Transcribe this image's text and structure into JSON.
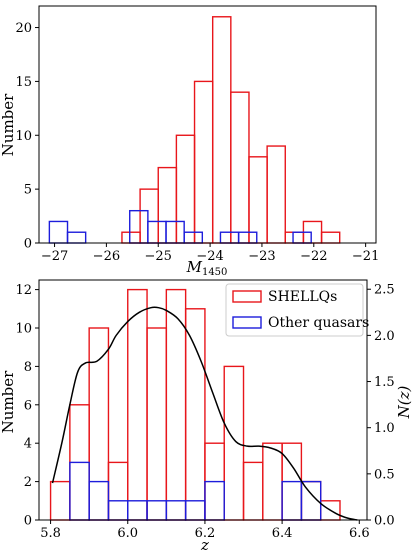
{
  "chart_data": [
    {
      "type": "histogram",
      "xlabel_main": "M",
      "xlabel_sub": "1450",
      "ylabel": "Number",
      "xlim": [
        -27.3,
        -20.8
      ],
      "ylim": [
        0,
        22
      ],
      "xticks": [
        -27,
        -26,
        -25,
        -24,
        -23,
        -22,
        -21
      ],
      "xtick_labels": [
        "−27",
        "−26",
        "−25",
        "−24",
        "−23",
        "−22",
        "−21"
      ],
      "yticks": [
        0,
        5,
        10,
        15,
        20
      ],
      "ytick_labels": [
        "0",
        "5",
        "10",
        "15",
        "20"
      ],
      "series": [
        {
          "name": "SHELLQs",
          "color": "#e8161b",
          "bins": [
            {
              "x0": -25.7,
              "x1": -25.35,
              "y": 1
            },
            {
              "x0": -25.35,
              "x1": -25.0,
              "y": 5
            },
            {
              "x0": -25.0,
              "x1": -24.65,
              "y": 7
            },
            {
              "x0": -24.65,
              "x1": -24.3,
              "y": 10
            },
            {
              "x0": -24.3,
              "x1": -23.95,
              "y": 15
            },
            {
              "x0": -23.95,
              "x1": -23.6,
              "y": 21
            },
            {
              "x0": -23.6,
              "x1": -23.25,
              "y": 14
            },
            {
              "x0": -23.25,
              "x1": -22.9,
              "y": 8
            },
            {
              "x0": -22.9,
              "x1": -22.55,
              "y": 9
            },
            {
              "x0": -22.55,
              "x1": -22.2,
              "y": 1
            },
            {
              "x0": -22.2,
              "x1": -21.85,
              "y": 2
            },
            {
              "x0": -21.85,
              "x1": -21.5,
              "y": 1
            }
          ]
        },
        {
          "name": "Other quasars",
          "color": "#1d1ddb",
          "bins": [
            {
              "x0": -27.1,
              "x1": -26.75,
              "y": 2
            },
            {
              "x0": -26.75,
              "x1": -26.4,
              "y": 1
            },
            {
              "x0": -25.55,
              "x1": -25.2,
              "y": 3
            },
            {
              "x0": -25.2,
              "x1": -24.85,
              "y": 2
            },
            {
              "x0": -24.85,
              "x1": -24.5,
              "y": 2
            },
            {
              "x0": -24.5,
              "x1": -24.15,
              "y": 1
            },
            {
              "x0": -23.8,
              "x1": -23.45,
              "y": 1
            },
            {
              "x0": -23.45,
              "x1": -23.1,
              "y": 1
            },
            {
              "x0": -22.4,
              "x1": -22.05,
              "y": 1
            }
          ]
        }
      ]
    },
    {
      "type": "histogram",
      "xlabel": "z",
      "ylabel": "Number",
      "ylabel_right": "N(z)",
      "xlim": [
        5.77,
        6.62
      ],
      "ylim": [
        0,
        12.5
      ],
      "ylim_right": [
        0,
        2.6
      ],
      "xticks": [
        5.8,
        6.0,
        6.2,
        6.4,
        6.6
      ],
      "xtick_labels": [
        "5.8",
        "6.0",
        "6.2",
        "6.4",
        "6.6"
      ],
      "yticks": [
        0,
        2,
        4,
        6,
        8,
        10,
        12
      ],
      "ytick_labels": [
        "0",
        "2",
        "4",
        "6",
        "8",
        "10",
        "12"
      ],
      "yticks_right": [
        0.0,
        0.5,
        1.0,
        1.5,
        2.0,
        2.5
      ],
      "ytick_labels_right": [
        "0.0",
        "0.5",
        "1.0",
        "1.5",
        "2.0",
        "2.5"
      ],
      "legend": {
        "location": "upper-right",
        "entries": [
          {
            "label": "SHELLQs",
            "color": "#e8161b"
          },
          {
            "label": "Other quasars",
            "color": "#1d1ddb"
          }
        ]
      },
      "series": [
        {
          "name": "SHELLQs",
          "color": "#e8161b",
          "bins": [
            {
              "x0": 5.8,
              "x1": 5.85,
              "y": 2
            },
            {
              "x0": 5.85,
              "x1": 5.9,
              "y": 6
            },
            {
              "x0": 5.9,
              "x1": 5.95,
              "y": 10
            },
            {
              "x0": 5.95,
              "x1": 6.0,
              "y": 3
            },
            {
              "x0": 6.0,
              "x1": 6.05,
              "y": 12
            },
            {
              "x0": 6.05,
              "x1": 6.1,
              "y": 10
            },
            {
              "x0": 6.1,
              "x1": 6.15,
              "y": 12
            },
            {
              "x0": 6.15,
              "x1": 6.2,
              "y": 11
            },
            {
              "x0": 6.2,
              "x1": 6.25,
              "y": 4
            },
            {
              "x0": 6.25,
              "x1": 6.3,
              "y": 8
            },
            {
              "x0": 6.3,
              "x1": 6.35,
              "y": 3
            },
            {
              "x0": 6.35,
              "x1": 6.4,
              "y": 4
            },
            {
              "x0": 6.4,
              "x1": 6.45,
              "y": 4
            },
            {
              "x0": 6.45,
              "x1": 6.5,
              "y": 2
            },
            {
              "x0": 6.5,
              "x1": 6.55,
              "y": 1
            }
          ]
        },
        {
          "name": "Other quasars",
          "color": "#1d1ddb",
          "bins": [
            {
              "x0": 5.85,
              "x1": 5.9,
              "y": 3
            },
            {
              "x0": 5.9,
              "x1": 5.95,
              "y": 2
            },
            {
              "x0": 5.95,
              "x1": 6.0,
              "y": 1
            },
            {
              "x0": 6.0,
              "x1": 6.05,
              "y": 1
            },
            {
              "x0": 6.05,
              "x1": 6.1,
              "y": 1
            },
            {
              "x0": 6.1,
              "x1": 6.15,
              "y": 1
            },
            {
              "x0": 6.15,
              "x1": 6.2,
              "y": 1
            },
            {
              "x0": 6.2,
              "x1": 6.25,
              "y": 2
            },
            {
              "x0": 6.4,
              "x1": 6.45,
              "y": 2
            },
            {
              "x0": 6.45,
              "x1": 6.5,
              "y": 2
            }
          ]
        }
      ],
      "curve": {
        "color": "#000000",
        "axis": "right",
        "x": [
          5.805,
          5.83,
          5.85,
          5.87,
          5.89,
          5.92,
          5.95,
          5.97,
          6.0,
          6.03,
          6.06,
          6.08,
          6.1,
          6.13,
          6.16,
          6.19,
          6.22,
          6.25,
          6.28,
          6.31,
          6.34,
          6.37,
          6.4,
          6.43,
          6.46,
          6.5,
          6.54,
          6.57,
          6.595
        ],
        "y": [
          0.4,
          0.85,
          1.25,
          1.6,
          1.7,
          1.72,
          1.85,
          2.0,
          2.15,
          2.25,
          2.3,
          2.3,
          2.27,
          2.18,
          2.0,
          1.72,
          1.38,
          1.05,
          0.85,
          0.8,
          0.8,
          0.78,
          0.72,
          0.56,
          0.36,
          0.18,
          0.07,
          0.02,
          0.0
        ]
      }
    }
  ]
}
